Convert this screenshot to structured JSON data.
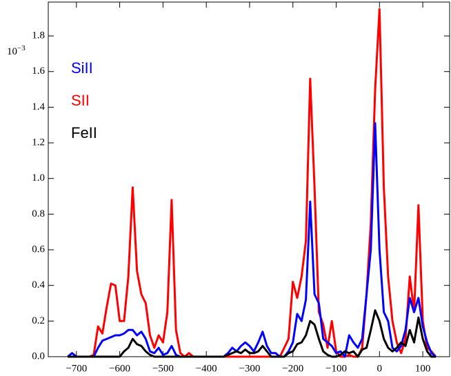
{
  "chart_data": {
    "type": "line",
    "multiplier": {
      "base": "10",
      "exponent": "−3"
    },
    "x": [
      -720,
      -710,
      -700,
      -690,
      -680,
      -670,
      -660,
      -650,
      -640,
      -630,
      -620,
      -610,
      -600,
      -590,
      -580,
      -570,
      -560,
      -550,
      -540,
      -530,
      -520,
      -510,
      -500,
      -490,
      -480,
      -470,
      -460,
      -450,
      -440,
      -430,
      -420,
      -410,
      -400,
      -390,
      -380,
      -370,
      -360,
      -350,
      -340,
      -330,
      -320,
      -310,
      -300,
      -290,
      -280,
      -270,
      -260,
      -250,
      -240,
      -230,
      -220,
      -210,
      -200,
      -190,
      -180,
      -170,
      -160,
      -150,
      -140,
      -130,
      -120,
      -110,
      -100,
      -90,
      -80,
      -70,
      -60,
      -50,
      -40,
      -30,
      -20,
      -10,
      0,
      10,
      20,
      30,
      40,
      50,
      60,
      70,
      80,
      90,
      100,
      110,
      120,
      130
    ],
    "series": [
      {
        "name": "SiII",
        "color": "#0000ff",
        "values": [
          0,
          0.02,
          0,
          0,
          0,
          0,
          0,
          0.05,
          0.09,
          0.1,
          0.11,
          0.12,
          0.12,
          0.13,
          0.15,
          0.15,
          0.12,
          0.14,
          0.1,
          0.03,
          0.02,
          0.05,
          0.01,
          0.02,
          0.06,
          0.01,
          0,
          0,
          0,
          0,
          0,
          0,
          0,
          0,
          0,
          0,
          0,
          0.02,
          0.05,
          0.03,
          0.06,
          0.08,
          0.06,
          0.03,
          0.08,
          0.14,
          0.06,
          0.02,
          0.02,
          0,
          0,
          0.03,
          0.08,
          0.24,
          0.2,
          0.32,
          0.87,
          0.35,
          0.3,
          0.1,
          0.08,
          0.06,
          0.02,
          0.03,
          0,
          0.12,
          0.08,
          0.05,
          0.1,
          0.35,
          0.6,
          1.31,
          0.6,
          0.25,
          0.2,
          0.05,
          0.03,
          0.06,
          0.15,
          0.33,
          0.25,
          0.33,
          0.17,
          0.08,
          0.02,
          0
        ]
      },
      {
        "name": "SII",
        "color": "#ff0000",
        "values": [
          0,
          0,
          0,
          0,
          0,
          0,
          0.01,
          0.17,
          0.13,
          0.28,
          0.41,
          0.4,
          0.2,
          0.2,
          0.45,
          0.95,
          0.48,
          0.35,
          0.3,
          0.12,
          0.05,
          0.12,
          0.08,
          0.25,
          0.88,
          0.15,
          0.02,
          0,
          0.02,
          0,
          0,
          0,
          0,
          0,
          0,
          0,
          0,
          0,
          0,
          0,
          0,
          0,
          0,
          0,
          0,
          0,
          0,
          0,
          0,
          0,
          0.05,
          0.1,
          0.42,
          0.33,
          0.45,
          0.65,
          1.56,
          0.95,
          0.25,
          0.18,
          0.05,
          0.2,
          0.03,
          0,
          0,
          0.01,
          0,
          0,
          0.05,
          0.35,
          0.75,
          1.5,
          1.95,
          0.95,
          0.45,
          0.2,
          0.08,
          0.02,
          0.1,
          0.45,
          0.25,
          0.85,
          0.2,
          0.05,
          0.03,
          0
        ]
      },
      {
        "name": "FeII",
        "color": "#000000",
        "values": [
          0,
          0,
          0,
          0,
          0,
          0,
          0,
          0,
          0,
          0,
          0,
          0,
          0,
          0.03,
          0.05,
          0.1,
          0.07,
          0.06,
          0.03,
          0.01,
          0,
          0,
          0,
          0,
          0,
          0,
          0,
          0,
          0,
          0,
          0,
          0,
          0,
          0,
          0,
          0,
          0,
          0.01,
          0.02,
          0.03,
          0.02,
          0.04,
          0.02,
          0.02,
          0.03,
          0.06,
          0.03,
          0,
          0,
          0,
          0,
          0.02,
          0.03,
          0.07,
          0.08,
          0.12,
          0.2,
          0.18,
          0.1,
          0.03,
          0.01,
          0,
          0,
          0.01,
          0.03,
          0.02,
          0.03,
          0,
          0.04,
          0.05,
          0.15,
          0.26,
          0.2,
          0.1,
          0.05,
          0.03,
          0.05,
          0.08,
          0.06,
          0.15,
          0.08,
          0.22,
          0.1,
          0.03,
          0,
          0
        ]
      }
    ],
    "xlim": [
      -765,
      162
    ],
    "ylim": [
      0,
      1.99
    ],
    "xticks": [
      {
        "value": -700,
        "label": "−700"
      },
      {
        "value": -600,
        "label": "−600"
      },
      {
        "value": -500,
        "label": "−500"
      },
      {
        "value": -400,
        "label": "−400"
      },
      {
        "value": -300,
        "label": "−300"
      },
      {
        "value": -200,
        "label": "−200"
      },
      {
        "value": -100,
        "label": "−100"
      },
      0,
      100
    ],
    "yticks": [
      {
        "value": 0,
        "label": "0.0"
      },
      0.2,
      0.4,
      0.6,
      0.8,
      {
        "value": 1,
        "label": "1.0"
      },
      1.2,
      1.4,
      1.6,
      1.8
    ]
  }
}
